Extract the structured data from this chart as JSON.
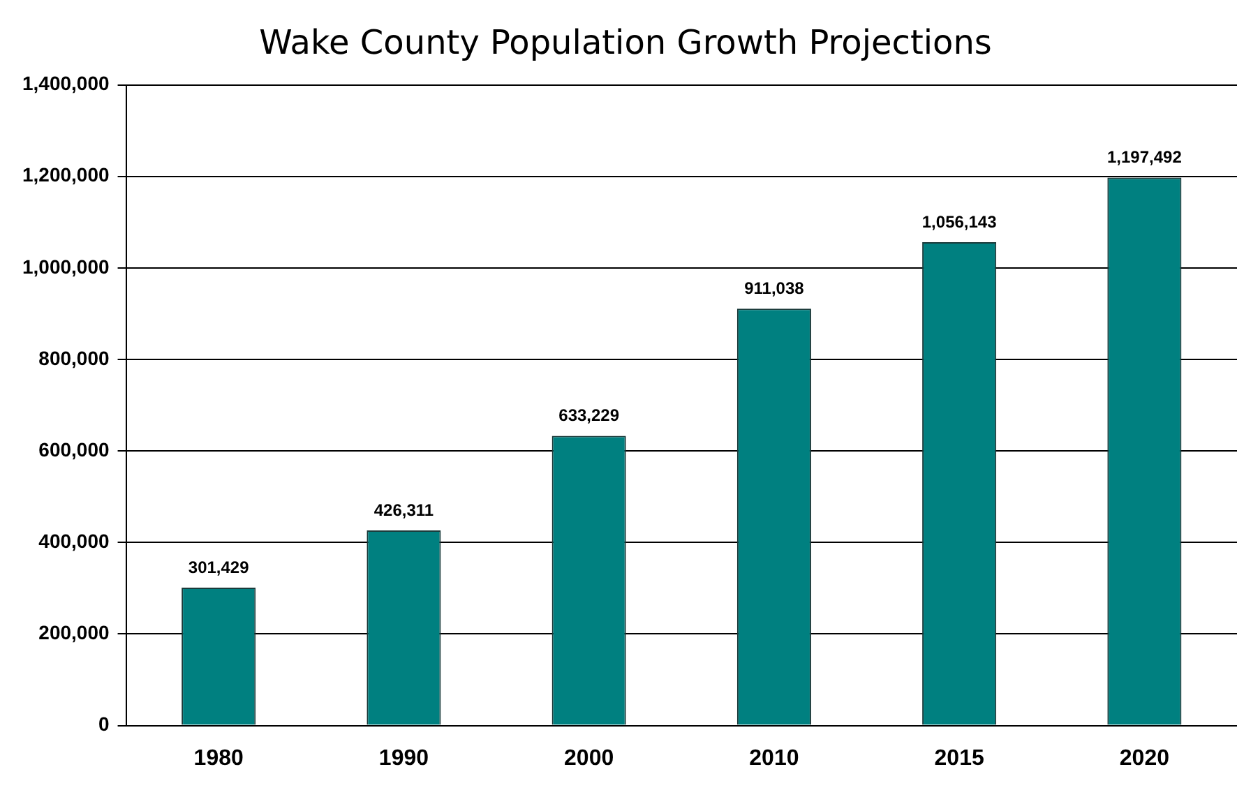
{
  "chart_data": {
    "type": "bar",
    "title": "Wake County Population Growth Projections",
    "categories": [
      "1980",
      "1990",
      "2000",
      "2010",
      "2015",
      "2020"
    ],
    "values": [
      301429,
      426311,
      633229,
      911038,
      1056143,
      1197492
    ],
    "value_labels": [
      "301,429",
      "426,311",
      "633,229",
      "911,038",
      "1,056,143",
      "1,197,492"
    ],
    "color": "#008080",
    "ylim": [
      0,
      1400000
    ],
    "yticks": [
      0,
      {
        "value": 200000,
        "label": "200,000"
      },
      {
        "value": 400000,
        "label": "400,000"
      },
      {
        "value": 600000,
        "label": "600,000"
      },
      {
        "value": 800000,
        "label": "800,000"
      },
      {
        "value": 1000000,
        "label": "1,000,000"
      },
      {
        "value": 1200000,
        "label": "1,200,000"
      },
      {
        "value": 1400000,
        "label": "1,400,000"
      }
    ],
    "grid": "y",
    "legend": false
  }
}
